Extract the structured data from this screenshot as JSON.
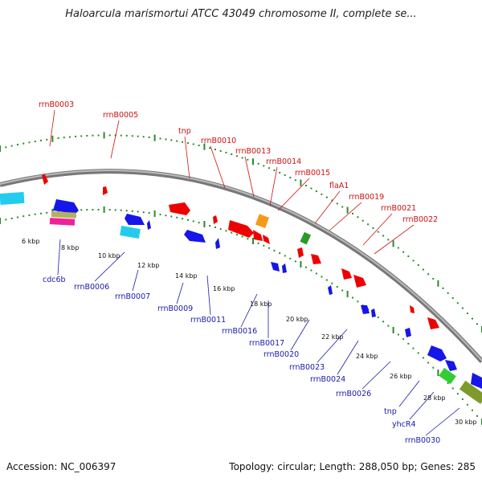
{
  "title": "Haloarcula marismortui ATCC 43049 chromosome II, complete se...",
  "footer": {
    "accession": "Accession: NC_006397",
    "summary": "Topology: circular; Length: 288,050 bp; Genes: 285"
  },
  "colors": {
    "backbone": "#888888",
    "tick": "#2a8a2a",
    "top_label": "#cc1111",
    "bottom_label": "#1a1aaa"
  },
  "kbp_labels": [
    "6 kbp",
    "8 kbp",
    "10 kbp",
    "12 kbp",
    "14 kbp",
    "16 kbp",
    "18 kbp",
    "20 kbp",
    "22 kbp",
    "24 kbp",
    "26 kbp",
    "28 kbp",
    "30 kbp"
  ],
  "top_labels": [
    "rrnB0003",
    "rrnB0005",
    "tnp",
    "rrnB0010",
    "rrnB0013",
    "rrnB0014",
    "rrnB0015",
    "flaA1",
    "rrnB0019",
    "rrnB0021",
    "rrnB0022"
  ],
  "bottom_labels": [
    "cdc6b",
    "rrnB0006",
    "rrnB0007",
    "rrnB0009",
    "rrnB0011",
    "rrnB0016",
    "rrnB0017",
    "rrnB0020",
    "rrnB0023",
    "rrnB0024",
    "rrnB0026",
    "tnp",
    "yhcR4",
    "rrnB0030"
  ]
}
